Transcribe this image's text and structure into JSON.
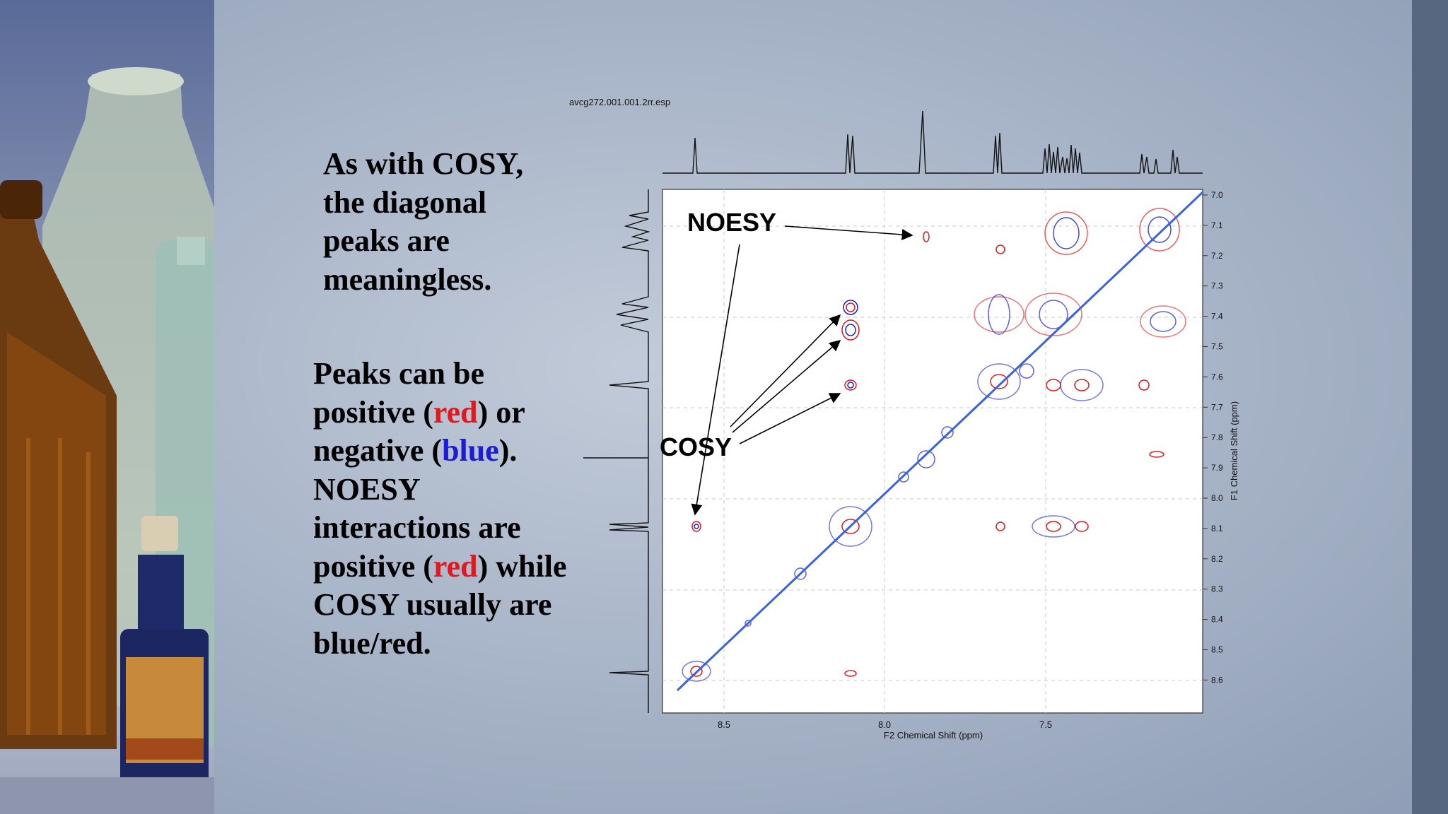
{
  "slide": {
    "paragraph_1": "As with COSY,\nthe diagonal\npeaks are\nmeaningless.",
    "paragraph_2": {
      "line1": "Peaks can be",
      "p2_pre": "positive (",
      "red_1": "red",
      "p2_post": ") or",
      "p3_pre": "negative (",
      "blue_1": "blue",
      "p3_post": ").",
      "line4": "NOESY",
      "line5": "interactions are",
      "p6_pre": "positive (",
      "red_2": "red",
      "p6_post": ") while",
      "line7": "COSY usually are",
      "line8": "blue/red."
    }
  },
  "spectrum": {
    "filename": "avcg272.001.001.2rr.esp",
    "x_axis_title": "F2 Chemical Shift (ppm)",
    "y_axis_title": "F1 Chemical Shift (ppm)",
    "x_ticks": [
      "8.5",
      "8.0",
      "7.5"
    ],
    "y_ticks": [
      "7.0",
      "7.1",
      "7.2",
      "7.3",
      "7.4",
      "7.5",
      "7.6",
      "7.7",
      "7.8",
      "7.9",
      "8.0",
      "8.1",
      "8.2",
      "8.3",
      "8.4",
      "8.5",
      "8.6"
    ],
    "callouts": {
      "noesy": "NOESY",
      "cosy": "COSY"
    }
  },
  "colors": {
    "positive": "#e3171c",
    "negative": "#1c1cd6",
    "diagonal": "#3b63e0",
    "right_bar": "#56677f"
  }
}
